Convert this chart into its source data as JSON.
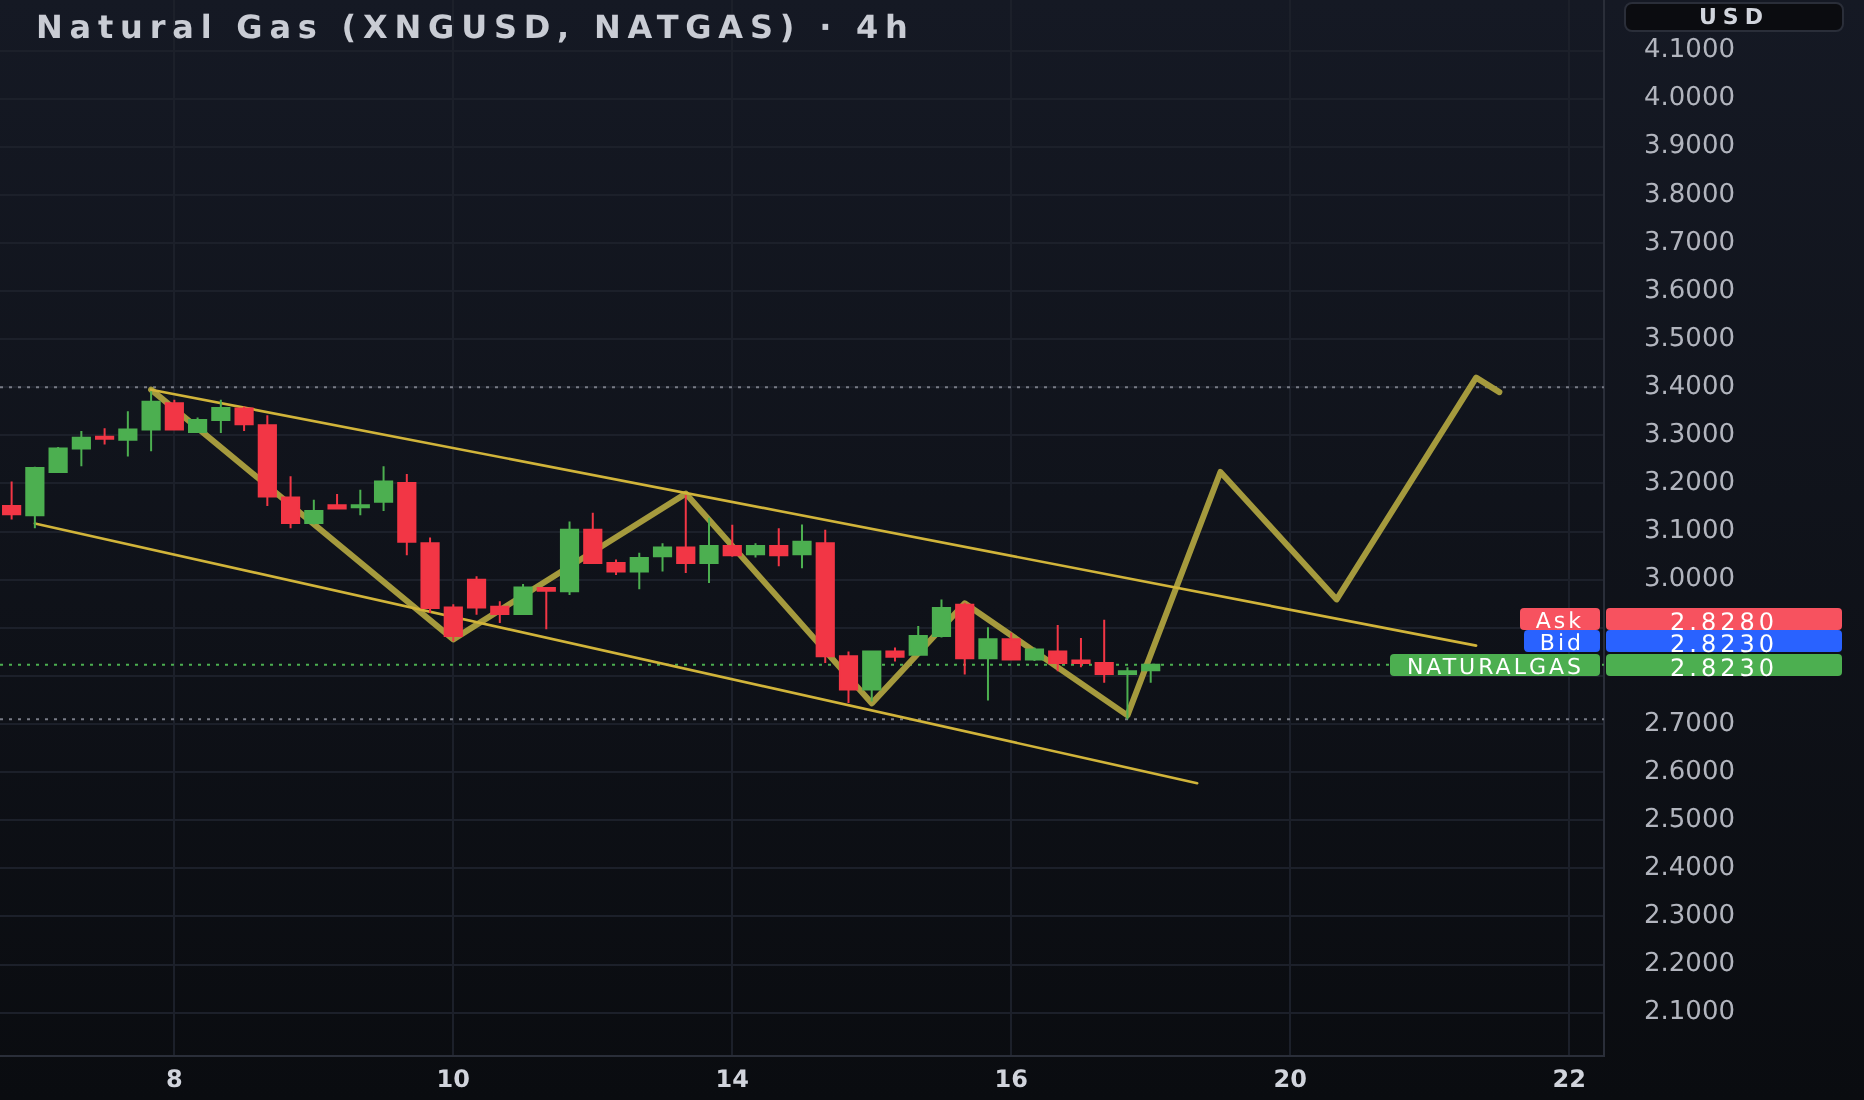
{
  "chart_data": {
    "type": "candlestick",
    "title": "Natural Gas (XNGUSD, NATGAS) · 4h",
    "ylabel": "USD",
    "categories": [
      null,
      null,
      null,
      null,
      null,
      null,
      null,
      "8",
      null,
      null,
      null,
      null,
      null,
      null,
      null,
      null,
      null,
      null,
      null,
      "10",
      null,
      null,
      null,
      null,
      null,
      null,
      null,
      null,
      null,
      null,
      null,
      "14",
      null,
      null,
      null,
      null,
      null,
      null,
      null,
      null,
      null,
      null,
      null,
      "16",
      null,
      null,
      null,
      null,
      null,
      null,
      null,
      null,
      null,
      null,
      null,
      "20",
      null,
      null,
      null,
      null,
      null,
      null,
      null,
      null,
      null,
      null,
      null,
      "22",
      null
    ],
    "ohlc": [
      [
        3.153,
        3.204,
        3.125,
        3.136
      ],
      [
        3.134,
        3.235,
        3.107,
        3.232
      ],
      [
        3.224,
        3.276,
        3.222,
        3.273
      ],
      [
        3.273,
        3.309,
        3.236,
        3.295
      ],
      [
        3.297,
        3.315,
        3.281,
        3.293
      ],
      [
        3.291,
        3.35,
        3.256,
        3.312
      ],
      [
        3.312,
        3.392,
        3.267,
        3.37
      ],
      [
        3.367,
        3.374,
        3.31,
        3.312
      ],
      [
        3.307,
        3.337,
        3.305,
        3.332
      ],
      [
        3.332,
        3.374,
        3.305,
        3.357
      ],
      [
        3.356,
        3.36,
        3.309,
        3.323
      ],
      [
        3.321,
        3.342,
        3.153,
        3.173
      ],
      [
        3.171,
        3.215,
        3.107,
        3.118
      ],
      [
        3.118,
        3.166,
        3.115,
        3.143
      ],
      [
        3.155,
        3.178,
        3.146,
        3.148
      ],
      [
        3.153,
        3.187,
        3.134,
        3.155
      ],
      [
        3.162,
        3.236,
        3.143,
        3.204
      ],
      [
        3.201,
        3.22,
        3.051,
        3.079
      ],
      [
        3.076,
        3.088,
        2.931,
        2.941
      ],
      [
        2.942,
        2.949,
        2.872,
        2.883
      ],
      [
        3.0,
        3.007,
        2.927,
        2.942
      ],
      [
        2.944,
        2.955,
        2.91,
        2.929
      ],
      [
        2.929,
        2.991,
        2.927,
        2.984
      ],
      [
        2.983,
        2.985,
        2.897,
        2.977
      ],
      [
        2.976,
        3.121,
        2.968,
        3.104
      ],
      [
        3.104,
        3.139,
        3.033,
        3.035
      ],
      [
        3.035,
        3.042,
        3.01,
        3.017
      ],
      [
        3.017,
        3.056,
        2.98,
        3.045
      ],
      [
        3.049,
        3.076,
        3.017,
        3.067
      ],
      [
        3.067,
        3.176,
        3.014,
        3.035
      ],
      [
        3.035,
        3.129,
        2.993,
        3.07
      ],
      [
        3.07,
        3.114,
        3.048,
        3.051
      ],
      [
        3.053,
        3.076,
        3.046,
        3.07
      ],
      [
        3.07,
        3.107,
        3.028,
        3.051
      ],
      [
        3.053,
        3.115,
        3.024,
        3.079
      ],
      [
        3.076,
        3.104,
        2.827,
        2.841
      ],
      [
        2.841,
        2.851,
        2.744,
        2.772
      ],
      [
        2.772,
        2.851,
        2.747,
        2.851
      ],
      [
        2.851,
        2.859,
        2.83,
        2.84
      ],
      [
        2.844,
        2.904,
        2.842,
        2.883
      ],
      [
        2.883,
        2.959,
        2.88,
        2.941
      ],
      [
        2.948,
        2.952,
        2.803,
        2.837
      ],
      [
        2.837,
        2.901,
        2.749,
        2.876
      ],
      [
        2.876,
        2.89,
        2.832,
        2.834
      ],
      [
        2.834,
        2.859,
        2.831,
        2.855
      ],
      [
        2.851,
        2.906,
        2.81,
        2.827
      ],
      [
        2.832,
        2.879,
        2.818,
        2.827
      ],
      [
        2.827,
        2.917,
        2.786,
        2.804
      ],
      [
        2.804,
        2.818,
        2.71,
        2.81
      ],
      [
        2.812,
        2.823,
        2.786,
        2.823
      ],
      null,
      null,
      null,
      null,
      null,
      null,
      null,
      null,
      null,
      null,
      null,
      null,
      null,
      null,
      null,
      null,
      null,
      null,
      null
    ],
    "colors": [
      "#f23645",
      "#4caf50",
      "#4caf50",
      "#4caf50",
      "#f23645",
      "#4caf50",
      "#4caf50",
      "#f23645",
      "#4caf50",
      "#4caf50",
      "#f23645",
      "#f23645",
      "#f23645",
      "#4caf50",
      "#f23645",
      "#4caf50",
      "#4caf50",
      "#f23645",
      "#f23645",
      "#f23645",
      "#f23645",
      "#f23645",
      "#4caf50",
      "#f23645",
      "#4caf50",
      "#f23645",
      "#f23645",
      "#4caf50",
      "#4caf50",
      "#f23645",
      "#4caf50",
      "#f23645",
      "#4caf50",
      "#f23645",
      "#4caf50",
      "#f23645",
      "#f23645",
      "#4caf50",
      "#f23645",
      "#4caf50",
      "#4caf50",
      "#f23645",
      "#4caf50",
      "#f23645",
      "#4caf50",
      "#f23645",
      "#f23645",
      "#f23645",
      "#4caf50",
      "#4caf50",
      null,
      null,
      null,
      null,
      null,
      null,
      null,
      null,
      null,
      null,
      null,
      null,
      null,
      null,
      null,
      null,
      null,
      null,
      null
    ],
    "series": [
      {
        "type": "line",
        "color": "#d1b43a",
        "values": [
          null,
          null,
          null,
          null,
          null,
          null,
          3.395,
          null,
          null,
          null,
          null,
          null,
          null,
          null,
          null,
          null,
          null,
          null,
          null,
          null,
          null,
          null,
          null,
          null,
          null,
          null,
          null,
          null,
          null,
          null,
          null,
          null,
          null,
          null,
          null,
          null,
          null,
          null,
          null,
          null,
          null,
          null,
          null,
          null,
          null,
          null,
          null,
          null,
          null,
          null,
          null,
          null,
          null,
          null,
          null,
          null,
          null,
          null,
          null,
          null,
          null,
          null,
          null,
          2.863,
          null,
          null,
          null,
          null,
          null
        ]
      },
      {
        "type": "line",
        "color": "#d1b43a",
        "values": [
          null,
          3.117,
          null,
          null,
          null,
          null,
          null,
          null,
          null,
          null,
          null,
          null,
          null,
          null,
          null,
          null,
          null,
          null,
          null,
          null,
          null,
          null,
          null,
          null,
          null,
          null,
          null,
          null,
          null,
          null,
          null,
          null,
          null,
          null,
          null,
          null,
          null,
          null,
          null,
          null,
          null,
          null,
          null,
          null,
          null,
          null,
          null,
          null,
          null,
          null,
          null,
          2.577,
          null,
          null,
          null,
          null,
          null,
          null,
          null,
          null,
          null,
          null,
          null,
          null,
          null,
          null,
          null,
          null,
          null
        ]
      },
      {
        "type": "line",
        "color": "#a59a3d",
        "values": [
          null,
          null,
          null,
          null,
          null,
          null,
          3.395,
          null,
          null,
          null,
          null,
          null,
          null,
          null,
          null,
          null,
          null,
          null,
          null,
          2.876,
          null,
          null,
          null,
          null,
          null,
          null,
          null,
          null,
          null,
          3.179,
          null,
          null,
          null,
          null,
          null,
          null,
          null,
          2.743,
          null,
          null,
          null,
          2.951,
          null,
          null,
          null,
          null,
          null,
          null,
          2.718,
          null,
          null,
          null,
          3.224,
          null,
          null,
          null,
          null,
          2.959,
          null,
          null,
          null,
          null,
          null,
          3.42,
          3.39,
          null,
          null,
          null,
          null
        ]
      }
    ],
    "ylim": [
      2.01,
      4.205
    ],
    "yticks": [
      {
        "value": 2.1,
        "label": "2.1000"
      },
      {
        "value": 2.2,
        "label": "2.2000"
      },
      {
        "value": 2.3,
        "label": "2.3000"
      },
      {
        "value": 2.4,
        "label": "2.4000"
      },
      {
        "value": 2.5,
        "label": "2.5000"
      },
      {
        "value": 2.6,
        "label": "2.6000"
      },
      {
        "value": 2.7,
        "label": "2.7000"
      },
      {
        "value": 2.8,
        "label": null
      },
      {
        "value": 2.9,
        "label": null
      },
      {
        "value": 3.0,
        "label": "3.0000"
      },
      {
        "value": 3.1,
        "label": "3.1000"
      },
      {
        "value": 3.2,
        "label": "3.2000"
      },
      {
        "value": 3.3,
        "label": "3.3000"
      },
      {
        "value": 3.4,
        "label": "3.4000"
      },
      {
        "value": 3.5,
        "label": "3.5000"
      },
      {
        "value": 3.6,
        "label": "3.6000"
      },
      {
        "value": 3.7,
        "label": "3.7000"
      },
      {
        "value": 3.8,
        "label": "3.8000"
      },
      {
        "value": 3.9,
        "label": "3.9000"
      },
      {
        "value": 4.0,
        "label": "4.0000"
      },
      {
        "value": 4.1,
        "label": "4.1000"
      }
    ],
    "ref_lines": [
      {
        "axis": "y",
        "value": 3.4,
        "color": "#787b86",
        "line_style": "dotted"
      },
      {
        "axis": "y",
        "value": 2.71,
        "color": "#787b86",
        "line_style": "dotted"
      },
      {
        "axis": "y",
        "value": 2.823,
        "label": "NATURALGAS",
        "color": "#4caf50",
        "line_style": "dotted"
      }
    ],
    "annotations": [
      "Ask",
      "2.8280",
      "Bid",
      "2.8230",
      "2.8230"
    ],
    "grid": true
  }
}
